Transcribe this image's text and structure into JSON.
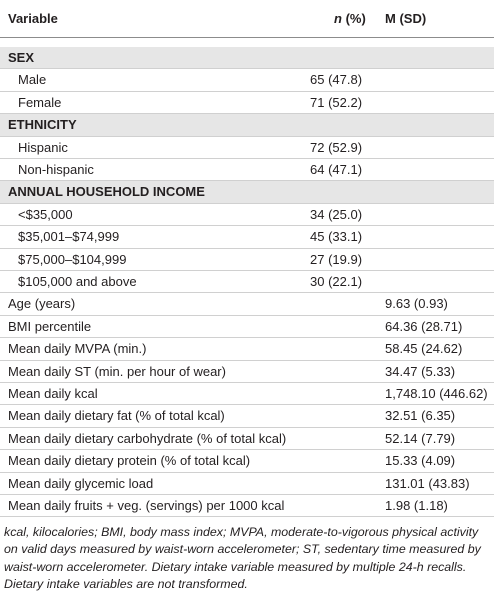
{
  "header": {
    "variable": "Variable",
    "n_symbol": "n",
    "n_unit": " (%)",
    "msd": "M (SD)"
  },
  "rows": [
    {
      "section": "SEX"
    },
    {
      "label": "Male",
      "n": "65 (47.8)"
    },
    {
      "label": "Female",
      "n": "71 (52.2)"
    },
    {
      "section": "ETHNICITY"
    },
    {
      "label": "Hispanic",
      "n": "72 (52.9)"
    },
    {
      "label": "Non-hispanic",
      "n": "64 (47.1)"
    },
    {
      "section": "ANNUAL HOUSEHOLD INCOME"
    },
    {
      "label": "<$35,000",
      "n": "34 (25.0)"
    },
    {
      "label": "$35,001–$74,999",
      "n": "45 (33.1)"
    },
    {
      "label": "$75,000–$104,999",
      "n": "27 (19.9)"
    },
    {
      "label": "$105,000 and above",
      "n": "30 (22.1)"
    },
    {
      "label": "Age (years)",
      "m": "9.63 (0.93)"
    },
    {
      "label": "BMI percentile",
      "m": "64.36 (28.71)"
    },
    {
      "label": "Mean daily MVPA (min.)",
      "m": "58.45 (24.62)"
    },
    {
      "label": "Mean daily ST (min. per hour of wear)",
      "m": "34.47 (5.33)"
    },
    {
      "label": "Mean daily kcal",
      "m": "1,748.10 (446.62)"
    },
    {
      "label": "Mean daily dietary fat (% of total kcal)",
      "m": "32.51 (6.35)"
    },
    {
      "label": "Mean daily dietary carbohydrate (% of total kcal)",
      "m": "52.14 (7.79)"
    },
    {
      "label": "Mean daily dietary protein (% of total kcal)",
      "m": "15.33 (4.09)"
    },
    {
      "label": "Mean daily glycemic load",
      "m": "131.01 (43.83)"
    },
    {
      "label": "Mean daily fruits + veg. (servings) per 1000 kcal",
      "m": "1.98 (1.18)"
    }
  ],
  "footnote": "kcal, kilocalories; BMI, body mass index; MVPA, moderate-to-vigorous physical activity on valid days measured by waist-worn accelerometer; ST, sedentary time measured by waist-worn accelerometer. Dietary intake variable measured by multiple 24-h recalls. Dietary intake variables are not transformed."
}
